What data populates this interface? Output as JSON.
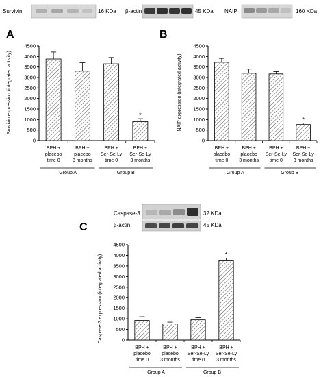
{
  "blots": {
    "survivin": {
      "label": "Survivin",
      "size": "16 KDa"
    },
    "bactin_top": {
      "label": "β-actin",
      "size": "45 KDa"
    },
    "naip": {
      "label": "NAIP",
      "size": "160 KDa"
    },
    "caspase3": {
      "label": "Caspase-3",
      "size": "32 KDa"
    },
    "bactin_bottom": {
      "label": "β-actin",
      "size": "45 KDa"
    }
  },
  "groups": {
    "a": "Group A",
    "b": "Group B"
  },
  "chart_data": [
    {
      "type": "bar",
      "panel": "A",
      "ylabel": "Survivin expression (integrated activity)",
      "categories": [
        [
          "BPH +",
          "placebo",
          "time 0"
        ],
        [
          "BPH +",
          "placebo",
          "3 months"
        ],
        [
          "BPH +",
          "Ser-Se-Ly",
          "time 0"
        ],
        [
          "BPH +",
          "Ser-Se-Ly",
          "3 months"
        ]
      ],
      "values": [
        3880,
        3300,
        3650,
        900
      ],
      "errors": [
        330,
        400,
        300,
        140
      ],
      "annotations": [
        "",
        "",
        "",
        "*"
      ],
      "ylim": [
        0,
        4500
      ],
      "yticks": [
        0,
        500,
        1000,
        1500,
        2000,
        2500,
        3000,
        3500,
        4000,
        4500
      ]
    },
    {
      "type": "bar",
      "panel": "B",
      "ylabel": "NAIP expression (integrated activity)",
      "categories": [
        [
          "BPH +",
          "placebo",
          "time 0"
        ],
        [
          "BPH +",
          "placebo",
          "3 months"
        ],
        [
          "BPH +",
          "Ser-Se-Ly",
          "time 0"
        ],
        [
          "BPH +",
          "Ser-Se-Ly",
          "3 months"
        ]
      ],
      "values": [
        3720,
        3200,
        3170,
        760
      ],
      "errors": [
        190,
        200,
        110,
        70
      ],
      "annotations": [
        "",
        "",
        "",
        "*"
      ],
      "ylim": [
        0,
        4500
      ],
      "yticks": [
        0,
        500,
        1000,
        1500,
        2000,
        2500,
        3000,
        3500,
        4000,
        4500
      ]
    },
    {
      "type": "bar",
      "panel": "C",
      "ylabel": "Caspase-3 expression (integrated activity)",
      "categories": [
        [
          "BPH +",
          "placebo",
          "time 0"
        ],
        [
          "BPH +",
          "placebo",
          "3 months"
        ],
        [
          "BPH +",
          "Ser-Se-Ly",
          "time 0"
        ],
        [
          "BPH +",
          "Ser-Se-Ly",
          "3 months"
        ]
      ],
      "values": [
        920,
        760,
        950,
        3740
      ],
      "errors": [
        180,
        80,
        100,
        130
      ],
      "annotations": [
        "",
        "",
        "",
        "*"
      ],
      "ylim": [
        0,
        4500
      ],
      "yticks": [
        0,
        500,
        1000,
        1500,
        2000,
        2500,
        3000,
        3500,
        4000,
        4500
      ]
    }
  ]
}
